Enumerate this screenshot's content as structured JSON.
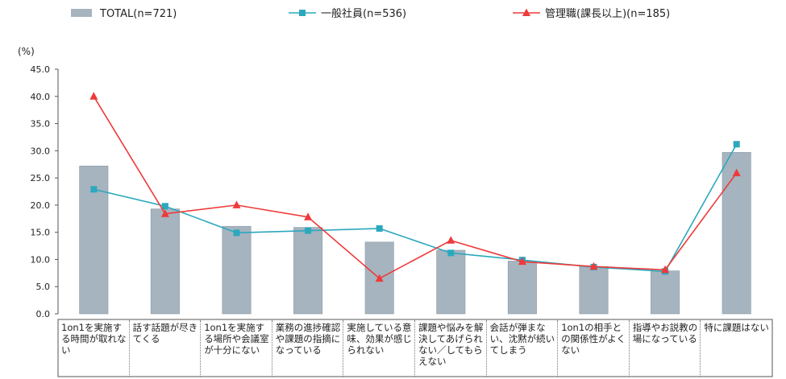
{
  "chart_data": {
    "type": "bar",
    "unit_label": "(%)",
    "ylim": [
      0,
      45
    ],
    "yticks": [
      "0.0",
      "5.0",
      "10.0",
      "15.0",
      "20.0",
      "25.0",
      "30.0",
      "35.0",
      "40.0",
      "45.0"
    ],
    "categories": [
      "1on1を実施する時間が取れない",
      "話す話題が尽きてくる",
      "1on1を実施する場所や会議室が十分にない",
      "業務の進捗確認や課題の指摘になっている",
      "実施している意味、効果が感じられない",
      "課題や悩みを解決してあげられない／してもらえない",
      "会話が弾まない、沈黙が続いてしまう",
      "1on1の相手との関係性がよくない",
      "指導やお説教の場になっている",
      "特に課題はない"
    ],
    "series": [
      {
        "name": "TOTAL(n=721)",
        "kind": "bar",
        "color": "#a6b4bf",
        "values": [
          27.2,
          19.3,
          16.1,
          15.9,
          13.2,
          11.7,
          9.7,
          8.7,
          7.9,
          29.7
        ]
      },
      {
        "name": "一般社員(n=536)",
        "kind": "line",
        "marker": "square",
        "color": "#2ba8be",
        "values": [
          22.9,
          19.8,
          14.9,
          15.3,
          15.7,
          11.2,
          9.9,
          8.6,
          7.8,
          31.2
        ]
      },
      {
        "name": "管理職(課長以上)(n=185)",
        "kind": "line",
        "marker": "triangle",
        "color": "#ee3a3a",
        "values": [
          40.0,
          18.4,
          20.0,
          17.8,
          6.5,
          13.5,
          9.6,
          8.7,
          8.1,
          25.9
        ]
      }
    ],
    "grid": false,
    "legend_position": "top"
  }
}
